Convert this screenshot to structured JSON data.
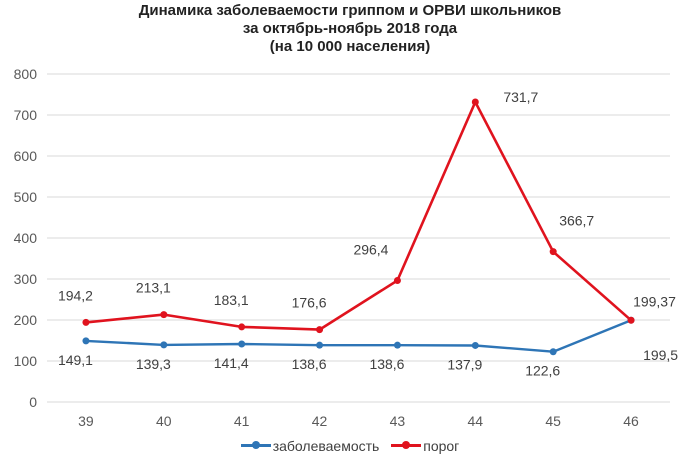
{
  "title_lines": [
    "Динамика заболеваемости гриппом и ОРВИ школьников",
    "за октябрь-ноябрь 2018 года",
    "(на 10 000 населения)"
  ],
  "chart_data": {
    "type": "line",
    "x": [
      "39",
      "40",
      "41",
      "42",
      "43",
      "44",
      "45",
      "46"
    ],
    "ylim": [
      0,
      800
    ],
    "yticks": [
      0,
      100,
      200,
      300,
      400,
      500,
      600,
      700,
      800
    ],
    "grid": true,
    "legend_position": "bottom",
    "series": [
      {
        "name": "заболеваемость",
        "color": "#2e75b6",
        "values": [
          149.1,
          139.3,
          141.4,
          138.6,
          138.6,
          137.9,
          122.6,
          199.5
        ],
        "labels": [
          "149,1",
          "139,3",
          "141,4",
          "138,6",
          "138,6",
          "137,9",
          "122,6",
          "199,5"
        ]
      },
      {
        "name": "порог",
        "color": "#e0131e",
        "values": [
          194.2,
          213.1,
          183.1,
          176.6,
          296.4,
          731.7,
          366.7,
          199.37
        ],
        "labels": [
          "194,2",
          "213,1",
          "183,1",
          "176,6",
          "296,4",
          "731,7",
          "366,7",
          "199,37"
        ]
      }
    ]
  }
}
